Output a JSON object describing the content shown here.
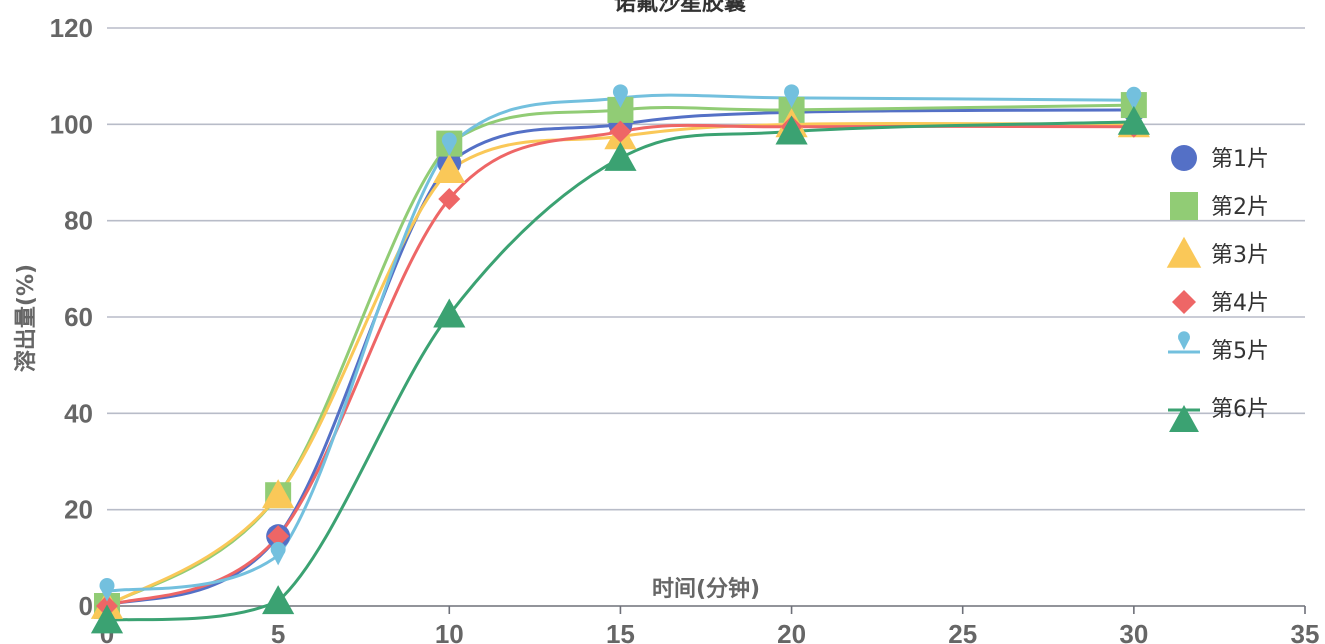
{
  "chart_data": {
    "type": "line",
    "title": "诺氟沙星胶囊",
    "xlabel": "时间(分钟)",
    "ylabel": "溶出量(%)",
    "xlim": [
      0,
      35
    ],
    "ylim": [
      0,
      120
    ],
    "xticks": [
      "0",
      "5",
      "10",
      "15",
      "20",
      "25",
      "30",
      "35"
    ],
    "yticks": [
      "0",
      "20",
      "40",
      "60",
      "80",
      "100",
      "120"
    ],
    "x": [
      0,
      5,
      10,
      15,
      20,
      30
    ],
    "grid": true,
    "smooth": true,
    "legend_position": "right",
    "series": [
      {
        "name": "第1片",
        "values": [
          0,
          14.5,
          92,
          100,
          102.5,
          103
        ],
        "color": "#5470c6",
        "symbol": "circle"
      },
      {
        "name": "第2片",
        "values": [
          0,
          23,
          96,
          103,
          103,
          104
        ],
        "color": "#91cc75",
        "symbol": "square"
      },
      {
        "name": "第3片",
        "values": [
          0,
          23,
          90.5,
          97.5,
          100,
          100
        ],
        "color": "#fac858",
        "symbol": "triangle"
      },
      {
        "name": "第4片",
        "values": [
          0,
          14.5,
          84.5,
          98.5,
          99.5,
          99.5
        ],
        "color": "#ee6666",
        "symbol": "diamond"
      },
      {
        "name": "第5片",
        "values": [
          3,
          10.5,
          95.5,
          105.5,
          105.5,
          105
        ],
        "color": "#73c0de",
        "symbol": "pin"
      },
      {
        "name": "第6片",
        "values": [
          -3,
          1,
          60.5,
          93,
          98.5,
          100.5
        ],
        "color": "#3ba272",
        "symbol": "triangle"
      }
    ]
  }
}
